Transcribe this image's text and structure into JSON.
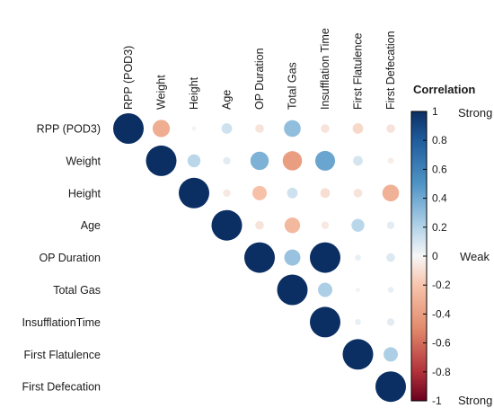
{
  "chart_data": {
    "type": "heatmap",
    "subtype": "correlation-circles",
    "variables": [
      "RPP (POD3)",
      "Weight",
      "Height",
      "Age",
      "OP Duration",
      "Total Gas",
      "Insufflation Time",
      "First Flatulence",
      "First Defecation"
    ],
    "row_labels": [
      "RPP (POD3)",
      "Weight",
      "Height",
      "Age",
      "OP Duration",
      "Total Gas",
      "InsufflationTime",
      "First Flatulence",
      "First Defecation"
    ],
    "matrix_shape": "upper-triangle",
    "values": [
      [
        1.0,
        -0.32,
        -0.02,
        0.12,
        -0.08,
        0.3,
        -0.08,
        -0.12,
        -0.08
      ],
      [
        null,
        1.0,
        0.18,
        0.06,
        0.36,
        -0.4,
        0.42,
        0.1,
        -0.04
      ],
      [
        null,
        null,
        1.0,
        -0.06,
        -0.22,
        0.12,
        -0.1,
        -0.08,
        -0.3
      ],
      [
        null,
        null,
        null,
        1.0,
        -0.08,
        -0.26,
        -0.06,
        0.18,
        0.06
      ],
      [
        null,
        null,
        null,
        null,
        1.0,
        0.28,
        1.0,
        0.04,
        0.08
      ],
      [
        null,
        null,
        null,
        null,
        null,
        1.0,
        0.22,
        0.02,
        0.04
      ],
      [
        null,
        null,
        null,
        null,
        null,
        null,
        1.0,
        0.04,
        0.06
      ],
      [
        null,
        null,
        null,
        null,
        null,
        null,
        null,
        1.0,
        0.22
      ],
      [
        null,
        null,
        null,
        null,
        null,
        null,
        null,
        null,
        1.0
      ]
    ],
    "legend": {
      "title": "Correlation",
      "range": [
        -1,
        1
      ],
      "ticks": [
        1,
        0.8,
        0.6,
        0.4,
        0.2,
        0,
        -0.2,
        -0.4,
        -0.6,
        -0.8,
        -1
      ],
      "tick_labels": [
        "1",
        "0.8",
        "0.6",
        "0.4",
        "0.2",
        "0",
        "-0.2",
        "-0.4",
        "-0.6",
        "-0.8",
        "-1"
      ],
      "annotations": {
        "top": "Strong",
        "middle": "Weak",
        "bottom": "Strong"
      },
      "placement": "right"
    },
    "colors": {
      "positive_strong": "#0b2f63",
      "positive_mid": "#4f94c6",
      "neutral": "#ffffff",
      "negative_mid": "#e28a6c",
      "negative_strong": "#6a001f"
    },
    "grid": false
  }
}
